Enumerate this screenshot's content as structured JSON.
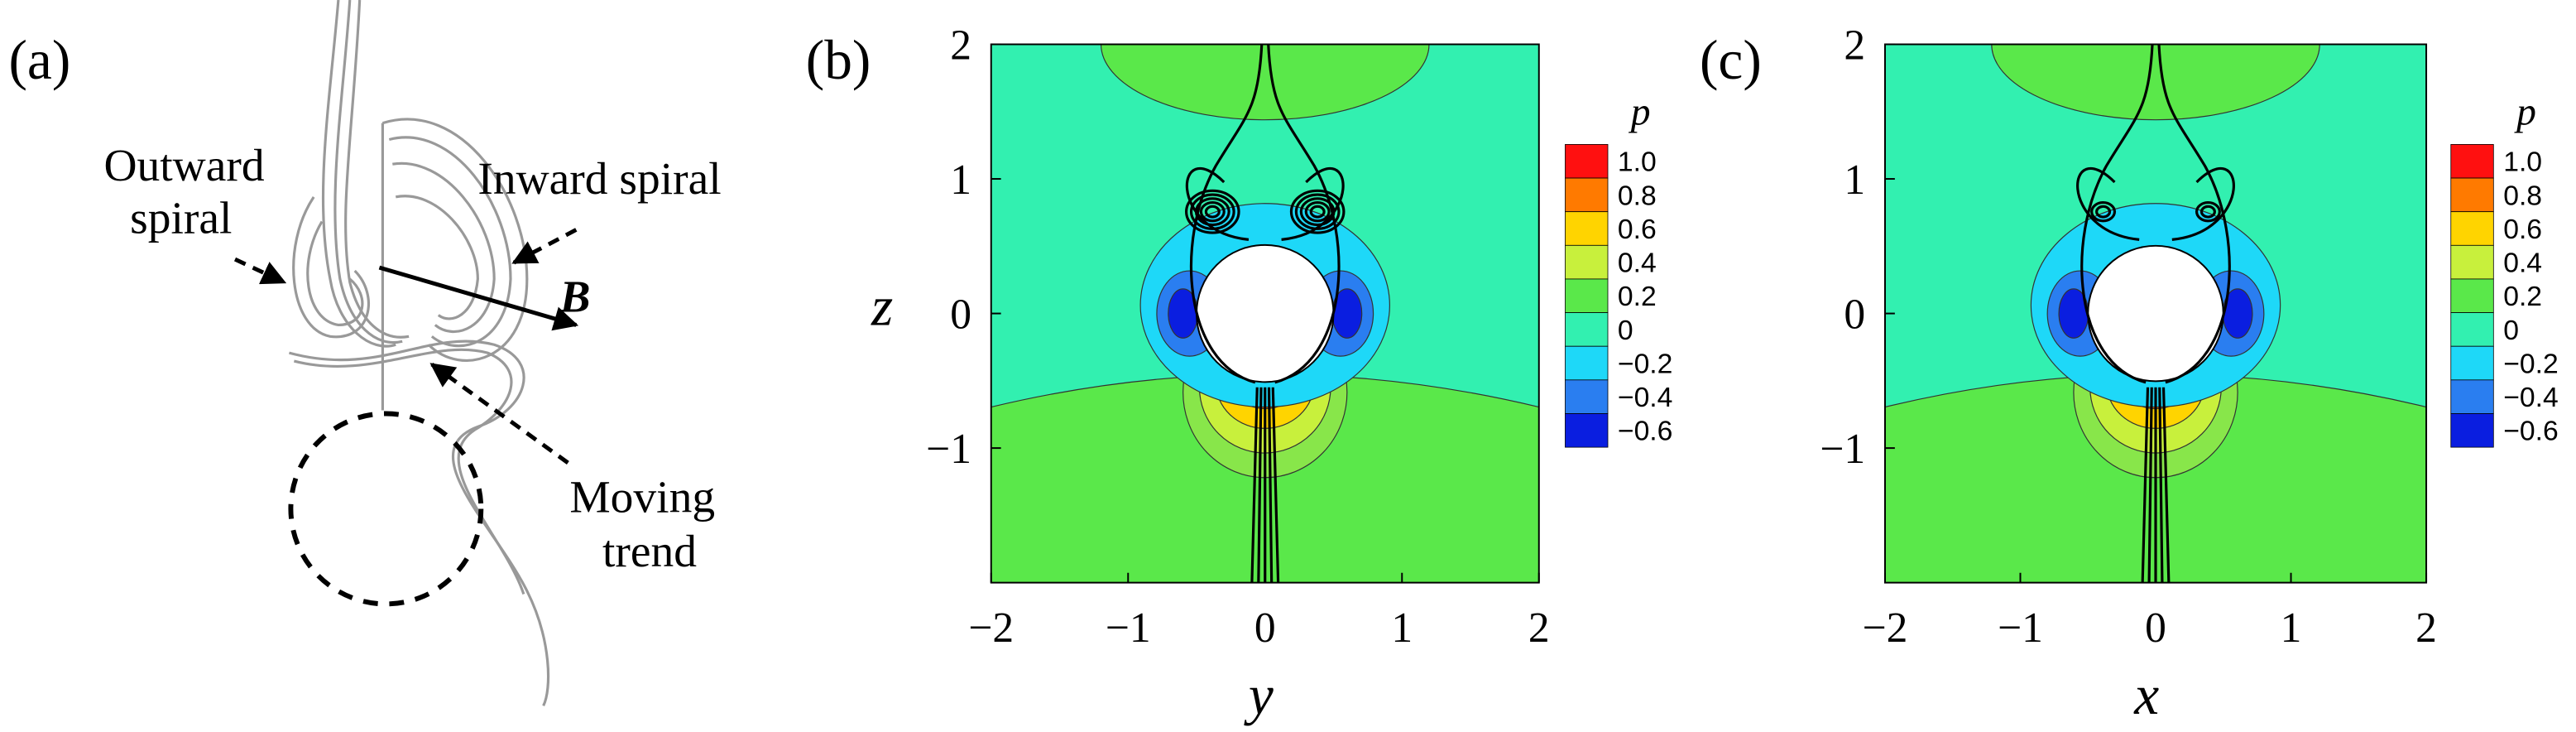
{
  "panels": [
    {
      "label": "(a)",
      "annotations": [
        "Outward",
        "spiral",
        "Inward spiral",
        "B",
        "Moving",
        "trend"
      ]
    },
    {
      "label": "(b)",
      "x_label": "y",
      "y_label": "z",
      "x_ticks": [
        "−2",
        "−1",
        "0",
        "1",
        "2"
      ],
      "y_ticks": [
        "2",
        "1",
        "0",
        "−1"
      ],
      "colorbar": {
        "title": "p",
        "labels": [
          "1.0",
          "0.8",
          "0.6",
          "0.4",
          "0.2",
          "0",
          "−0.2",
          "−0.4",
          "−0.6"
        ]
      }
    },
    {
      "label": "(c)",
      "x_label": "x",
      "x_ticks": [
        "−2",
        "−1",
        "0",
        "1",
        "2"
      ],
      "y_ticks": [
        "2",
        "1",
        "0",
        "−1"
      ],
      "colorbar": {
        "title": "p",
        "labels": [
          "1.0",
          "0.8",
          "0.6",
          "0.4",
          "0.2",
          "0",
          "−0.2",
          "−0.4",
          "−0.6"
        ]
      }
    }
  ]
}
